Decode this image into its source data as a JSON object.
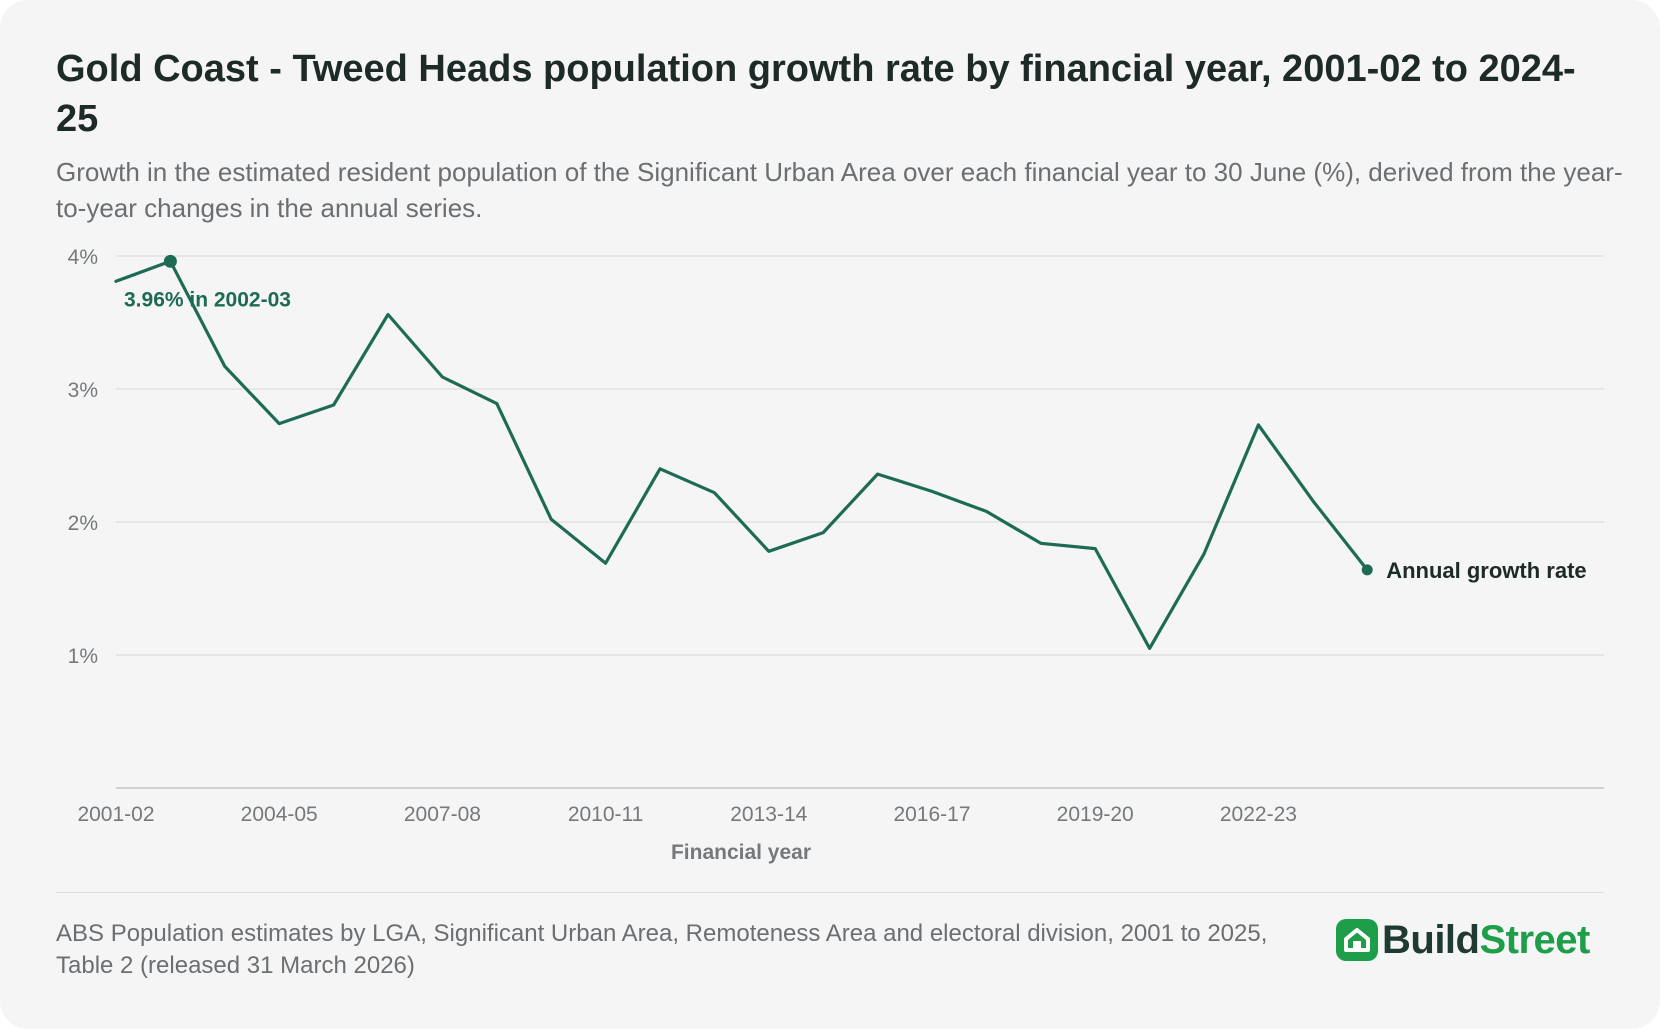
{
  "header": {
    "title": "Gold Coast - Tweed Heads population growth rate by financial year, 2001-02 to 2024-25",
    "subtitle": "Growth in the estimated resident population of the Significant Urban Area over each financial year to 30 June (%), derived from the year-to-year changes in the annual series."
  },
  "chart_data": {
    "type": "line",
    "title": "Gold Coast - Tweed Heads population growth rate by financial year, 2001-02 to 2024-25",
    "xlabel": "Financial year",
    "ylabel": "",
    "ylim": [
      0,
      4
    ],
    "y_ticks": [
      1,
      2,
      3,
      4
    ],
    "y_tick_labels": [
      "1%",
      "2%",
      "3%",
      "4%"
    ],
    "x_tick_labels": [
      "2001-02",
      "2004-05",
      "2007-08",
      "2010-11",
      "2013-14",
      "2016-17",
      "2019-20",
      "2022-23"
    ],
    "grid": true,
    "color": "#1e6b55",
    "categories": [
      "2001-02",
      "2002-03",
      "2003-04",
      "2004-05",
      "2005-06",
      "2006-07",
      "2007-08",
      "2008-09",
      "2009-10",
      "2010-11",
      "2011-12",
      "2012-13",
      "2013-14",
      "2014-15",
      "2015-16",
      "2016-17",
      "2017-18",
      "2018-19",
      "2019-20",
      "2020-21",
      "2021-22",
      "2022-23",
      "2023-24",
      "2024-25"
    ],
    "series": [
      {
        "name": "Annual growth rate",
        "values": [
          3.81,
          3.96,
          3.17,
          2.74,
          2.88,
          3.56,
          3.09,
          2.89,
          2.02,
          1.69,
          2.4,
          2.22,
          1.78,
          1.92,
          2.36,
          2.23,
          2.08,
          1.84,
          1.8,
          1.05,
          1.76,
          2.73,
          2.16,
          1.64
        ]
      }
    ],
    "annotations": [
      {
        "category": "2002-03",
        "value": 3.96,
        "text": "3.96% in 2002-03"
      }
    ]
  },
  "footer": {
    "source": "ABS Population estimates by LGA, Significant Urban Area, Remoteness Area and electoral division, 2001 to 2025, Table 2 (released 31 March 2026)",
    "logo_build": "Build",
    "logo_street": "Street"
  }
}
